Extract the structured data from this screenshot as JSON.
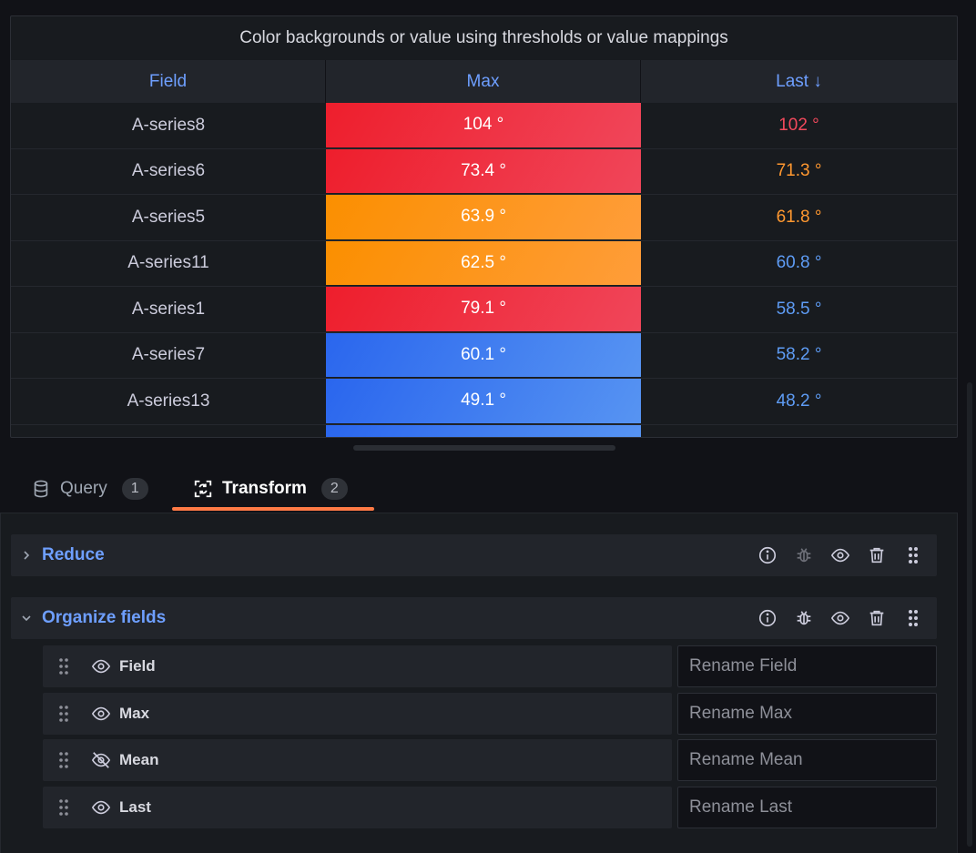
{
  "panel": {
    "title": "Color backgrounds or value using thresholds or value mappings"
  },
  "table": {
    "headers": [
      "Field",
      "Max",
      "Last ↓"
    ],
    "rows": [
      {
        "field": "A-series8",
        "max": "104 °",
        "last": "102 °",
        "max_color": "red",
        "last_color": "red"
      },
      {
        "field": "A-series6",
        "max": "73.4 °",
        "last": "71.3 °",
        "max_color": "red",
        "last_color": "orange"
      },
      {
        "field": "A-series5",
        "max": "63.9 °",
        "last": "61.8 °",
        "max_color": "orange",
        "last_color": "orange"
      },
      {
        "field": "A-series11",
        "max": "62.5 °",
        "last": "60.8 °",
        "max_color": "orange",
        "last_color": "blue"
      },
      {
        "field": "A-series1",
        "max": "79.1 °",
        "last": "58.5 °",
        "max_color": "red",
        "last_color": "blue"
      },
      {
        "field": "A-series7",
        "max": "60.1 °",
        "last": "58.2 °",
        "max_color": "blue",
        "last_color": "blue"
      },
      {
        "field": "A-series13",
        "max": "49.1 °",
        "last": "48.2 °",
        "max_color": "blue",
        "last_color": "blue"
      }
    ],
    "colors": {
      "red": "#f2495c",
      "orange": "#ff9830",
      "blue": "#5794f2"
    }
  },
  "tabs": [
    {
      "label": "Query",
      "count": "1",
      "icon": "database-icon",
      "active": false
    },
    {
      "label": "Transform",
      "count": "2",
      "icon": "transform-icon",
      "active": true
    }
  ],
  "transforms": {
    "reduce": {
      "title": "Reduce",
      "expanded": false
    },
    "organize": {
      "title": "Organize fields",
      "expanded": true,
      "fields": [
        {
          "name": "Field",
          "visible": true,
          "rename_placeholder": "Rename Field"
        },
        {
          "name": "Max",
          "visible": true,
          "rename_placeholder": "Rename Max"
        },
        {
          "name": "Mean",
          "visible": false,
          "rename_placeholder": "Rename Mean"
        },
        {
          "name": "Last",
          "visible": true,
          "rename_placeholder": "Rename Last"
        }
      ]
    },
    "action_icons": [
      "info-icon",
      "debug-icon",
      "eye-icon",
      "trash-icon",
      "drag-handle-icon"
    ]
  }
}
